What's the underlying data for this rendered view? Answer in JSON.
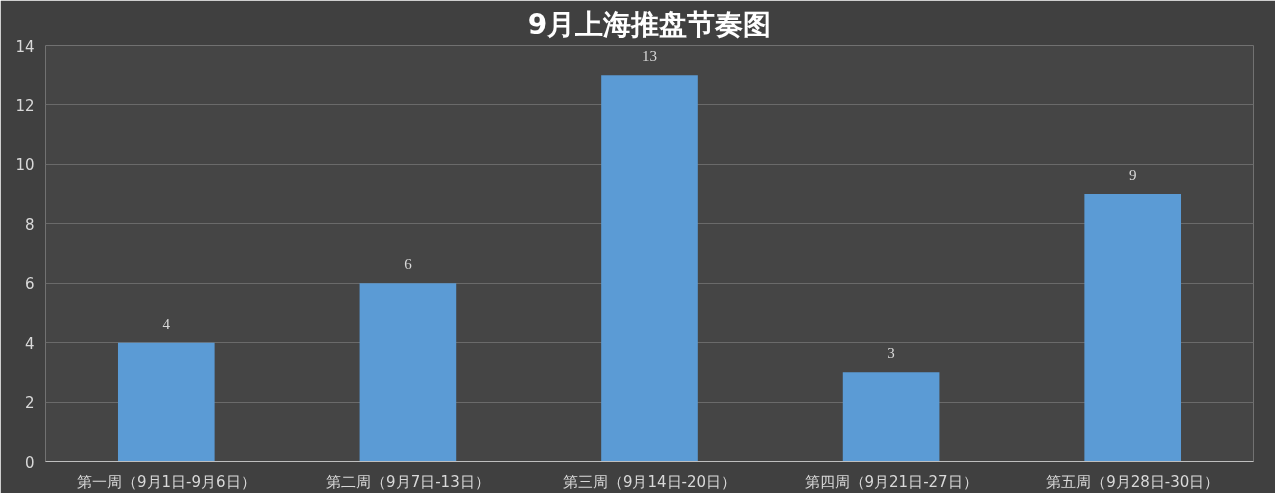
{
  "chart_data": {
    "type": "bar",
    "title": "9月上海推盘节奏图",
    "categories": [
      "第一周（9月1日-9月6日）",
      "第二周（9月7日-13日）",
      "第三周（9月14日-20日）",
      "第四周（9月21日-27日）",
      "第五周（9月28日-30日）"
    ],
    "values": [
      4,
      6,
      13,
      3,
      9
    ],
    "color": "#5b9bd5",
    "ylim": [
      0,
      14
    ],
    "yticks": [
      0,
      2,
      4,
      6,
      8,
      10,
      12,
      14
    ],
    "grid": "y",
    "data_labels": true
  }
}
